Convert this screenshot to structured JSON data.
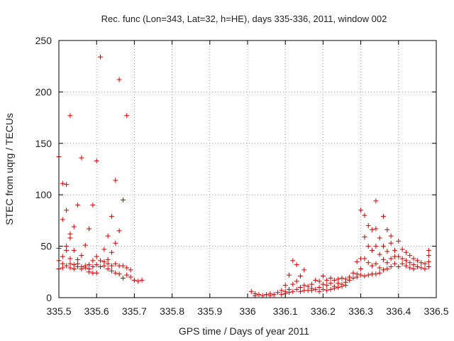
{
  "chart_data": {
    "type": "scatter",
    "title": "Rec. func (Lon=343, Lat=32, h=HE), days 335-336, 2011, window 002",
    "xlabel": "GPS time / Days of year 2011",
    "ylabel": "STEC from uqrg / TECUs",
    "xlim": [
      335.5,
      336.5
    ],
    "ylim": [
      0,
      250
    ],
    "grid": true,
    "x_ticks": [
      335.5,
      335.6,
      335.7,
      335.8,
      335.9,
      336,
      336.1,
      336.2,
      336.3,
      336.4,
      336.5
    ],
    "x_tick_labels": [
      "335.5",
      "335.6",
      "335.7",
      "335.8",
      "335.9",
      "336",
      "336.1",
      "336.2",
      "336.3",
      "336.4",
      "336.5"
    ],
    "y_ticks": [
      0,
      50,
      100,
      150,
      200,
      250
    ],
    "y_tick_labels": [
      "0",
      "50",
      "100",
      "150",
      "200",
      "250"
    ],
    "marker": "+",
    "marker_color": "#d00000",
    "series": [
      {
        "name": "STEC",
        "points": [
          [
            335.5,
            137
          ],
          [
            335.5,
            48
          ],
          [
            335.5,
            36
          ],
          [
            335.5,
            28
          ],
          [
            335.51,
            111
          ],
          [
            335.51,
            76
          ],
          [
            335.51,
            40
          ],
          [
            335.51,
            33
          ],
          [
            335.51,
            29
          ],
          [
            335.52,
            110
          ],
          [
            335.52,
            85
          ],
          [
            335.52,
            50
          ],
          [
            335.52,
            46
          ],
          [
            335.52,
            31
          ],
          [
            335.53,
            177
          ],
          [
            335.53,
            62
          ],
          [
            335.53,
            58
          ],
          [
            335.53,
            38
          ],
          [
            335.53,
            33
          ],
          [
            335.53,
            29
          ],
          [
            335.54,
            69
          ],
          [
            335.54,
            46
          ],
          [
            335.54,
            32
          ],
          [
            335.54,
            28
          ],
          [
            335.55,
            90
          ],
          [
            335.55,
            37
          ],
          [
            335.55,
            33
          ],
          [
            335.55,
            30
          ],
          [
            335.56,
            136
          ],
          [
            335.56,
            41
          ],
          [
            335.56,
            30
          ],
          [
            335.56,
            28
          ],
          [
            335.57,
            51
          ],
          [
            335.57,
            31
          ],
          [
            335.57,
            29
          ],
          [
            335.58,
            67
          ],
          [
            335.58,
            32
          ],
          [
            335.58,
            28
          ],
          [
            335.58,
            25
          ],
          [
            335.59,
            90
          ],
          [
            335.59,
            36
          ],
          [
            335.59,
            30
          ],
          [
            335.59,
            24
          ],
          [
            335.6,
            133
          ],
          [
            335.6,
            40
          ],
          [
            335.6,
            32
          ],
          [
            335.6,
            24
          ],
          [
            335.61,
            234
          ],
          [
            335.61,
            36
          ],
          [
            335.61,
            30
          ],
          [
            335.62,
            47
          ],
          [
            335.62,
            35
          ],
          [
            335.62,
            31
          ],
          [
            335.63,
            60
          ],
          [
            335.63,
            37
          ],
          [
            335.63,
            33
          ],
          [
            335.63,
            28
          ],
          [
            335.64,
            79
          ],
          [
            335.64,
            44
          ],
          [
            335.64,
            31
          ],
          [
            335.64,
            26
          ],
          [
            335.65,
            114
          ],
          [
            335.65,
            53
          ],
          [
            335.65,
            33
          ],
          [
            335.65,
            24
          ],
          [
            335.66,
            212
          ],
          [
            335.66,
            65
          ],
          [
            335.66,
            31
          ],
          [
            335.66,
            23
          ],
          [
            335.67,
            95
          ],
          [
            335.67,
            31
          ],
          [
            335.67,
            19
          ],
          [
            335.68,
            177
          ],
          [
            335.68,
            29
          ],
          [
            335.68,
            22
          ],
          [
            335.69,
            27
          ],
          [
            335.69,
            20
          ],
          [
            335.7,
            17
          ],
          [
            335.71,
            16
          ],
          [
            335.72,
            17
          ],
          [
            336.01,
            6
          ],
          [
            336.02,
            4
          ],
          [
            336.02,
            2
          ],
          [
            336.03,
            3
          ],
          [
            336.04,
            2
          ],
          [
            336.05,
            3
          ],
          [
            336.06,
            2
          ],
          [
            336.06,
            4
          ],
          [
            336.07,
            3
          ],
          [
            336.08,
            5
          ],
          [
            336.09,
            3
          ],
          [
            336.09,
            7
          ],
          [
            336.1,
            6
          ],
          [
            336.1,
            12
          ],
          [
            336.1,
            4
          ],
          [
            336.11,
            8
          ],
          [
            336.11,
            22
          ],
          [
            336.11,
            5
          ],
          [
            336.12,
            36
          ],
          [
            336.12,
            13
          ],
          [
            336.12,
            6
          ],
          [
            336.13,
            32
          ],
          [
            336.13,
            16
          ],
          [
            336.13,
            8
          ],
          [
            336.14,
            10
          ],
          [
            336.14,
            21
          ],
          [
            336.14,
            6
          ],
          [
            336.15,
            27
          ],
          [
            336.15,
            12
          ],
          [
            336.15,
            7
          ],
          [
            336.16,
            11
          ],
          [
            336.16,
            7
          ],
          [
            336.17,
            9
          ],
          [
            336.17,
            13
          ],
          [
            336.17,
            7
          ],
          [
            336.18,
            17
          ],
          [
            336.18,
            8
          ],
          [
            336.19,
            16
          ],
          [
            336.19,
            10
          ],
          [
            336.19,
            6
          ],
          [
            336.2,
            21
          ],
          [
            336.2,
            13
          ],
          [
            336.2,
            8
          ],
          [
            336.21,
            17
          ],
          [
            336.21,
            12
          ],
          [
            336.21,
            7
          ],
          [
            336.22,
            19
          ],
          [
            336.22,
            14
          ],
          [
            336.22,
            8
          ],
          [
            336.23,
            17
          ],
          [
            336.23,
            11
          ],
          [
            336.23,
            9
          ],
          [
            336.24,
            18
          ],
          [
            336.24,
            14
          ],
          [
            336.24,
            10
          ],
          [
            336.25,
            19
          ],
          [
            336.25,
            13
          ],
          [
            336.25,
            11
          ],
          [
            336.26,
            18
          ],
          [
            336.26,
            15
          ],
          [
            336.26,
            12
          ],
          [
            336.27,
            20
          ],
          [
            336.27,
            17
          ],
          [
            336.28,
            24
          ],
          [
            336.28,
            19
          ],
          [
            336.29,
            35
          ],
          [
            336.29,
            23
          ],
          [
            336.29,
            20
          ],
          [
            336.3,
            85
          ],
          [
            336.3,
            38
          ],
          [
            336.3,
            28
          ],
          [
            336.3,
            22
          ],
          [
            336.31,
            80
          ],
          [
            336.31,
            59
          ],
          [
            336.31,
            38
          ],
          [
            336.31,
            21
          ],
          [
            336.32,
            70
          ],
          [
            336.32,
            50
          ],
          [
            336.32,
            34
          ],
          [
            336.32,
            22
          ],
          [
            336.33,
            66
          ],
          [
            336.33,
            46
          ],
          [
            336.33,
            31
          ],
          [
            336.33,
            23
          ],
          [
            336.34,
            94
          ],
          [
            336.34,
            67
          ],
          [
            336.34,
            50
          ],
          [
            336.34,
            33
          ],
          [
            336.34,
            23
          ],
          [
            336.35,
            58
          ],
          [
            336.35,
            42
          ],
          [
            336.35,
            29
          ],
          [
            336.35,
            24
          ],
          [
            336.36,
            79
          ],
          [
            336.36,
            50
          ],
          [
            336.36,
            37
          ],
          [
            336.36,
            27
          ],
          [
            336.37,
            66
          ],
          [
            336.37,
            45
          ],
          [
            336.37,
            34
          ],
          [
            336.37,
            28
          ],
          [
            336.38,
            60
          ],
          [
            336.38,
            53
          ],
          [
            336.38,
            38
          ],
          [
            336.38,
            30
          ],
          [
            336.39,
            46
          ],
          [
            336.39,
            40
          ],
          [
            336.39,
            33
          ],
          [
            336.4,
            55
          ],
          [
            336.4,
            40
          ],
          [
            336.4,
            30
          ],
          [
            336.41,
            47
          ],
          [
            336.41,
            38
          ],
          [
            336.41,
            33
          ],
          [
            336.42,
            44
          ],
          [
            336.42,
            36
          ],
          [
            336.42,
            31
          ],
          [
            336.43,
            41
          ],
          [
            336.43,
            34
          ],
          [
            336.43,
            29
          ],
          [
            336.44,
            38
          ],
          [
            336.44,
            32
          ],
          [
            336.44,
            28
          ],
          [
            336.45,
            36
          ],
          [
            336.45,
            30
          ],
          [
            336.46,
            34
          ],
          [
            336.46,
            29
          ],
          [
            336.47,
            33
          ],
          [
            336.47,
            28
          ],
          [
            336.48,
            46
          ],
          [
            336.48,
            41
          ],
          [
            336.48,
            35
          ],
          [
            336.48,
            30
          ]
        ]
      }
    ]
  }
}
